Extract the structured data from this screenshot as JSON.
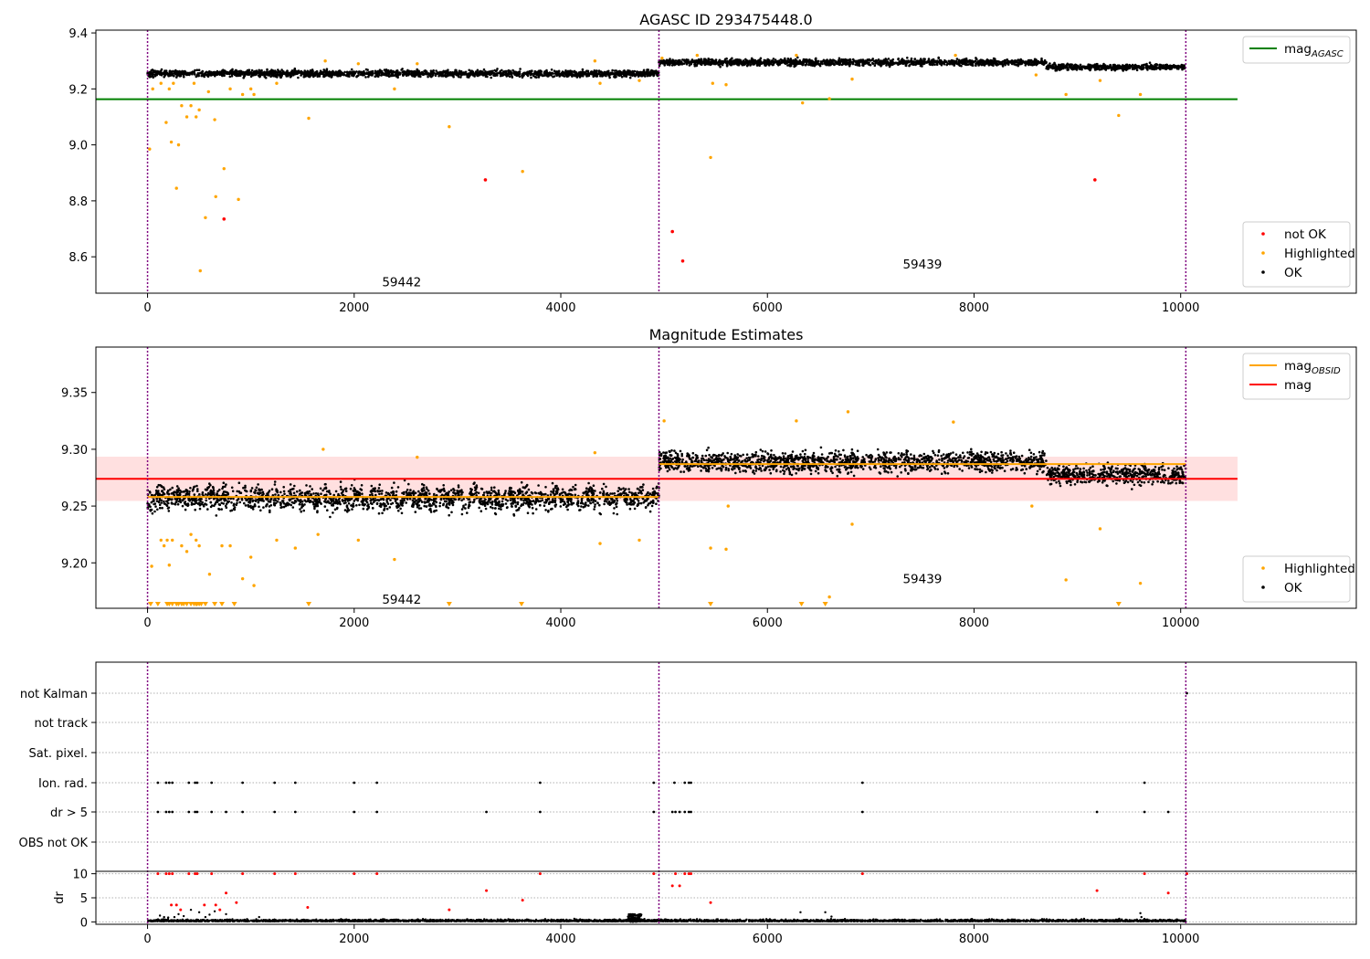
{
  "chart_data": [
    {
      "type": "scatter",
      "title": "AGASC ID 293475448.0",
      "xlim": [
        -500,
        11700
      ],
      "ylim": [
        8.47,
        9.41
      ],
      "xticks": [
        0,
        2000,
        4000,
        6000,
        8000,
        10000
      ],
      "yticks": [
        8.6,
        8.8,
        9.0,
        9.2,
        9.4
      ],
      "ytick_labels": [
        "8.6",
        "8.8",
        "9.0",
        "9.2",
        "9.4"
      ],
      "obs_boundaries": [
        0,
        4950,
        10050
      ],
      "obs_labels": [
        {
          "text": "59442",
          "x": 2460,
          "y": 8.51
        },
        {
          "text": "59439",
          "x": 7500,
          "y": 8.575
        }
      ],
      "lines": [
        {
          "name": "mag",
          "subscript": "AGASC",
          "color": "#008000",
          "x": [
            -500,
            10550
          ],
          "y": [
            9.163,
            9.163
          ]
        }
      ],
      "ok_bands": [
        {
          "x0": 0,
          "x1": 4950,
          "y": 9.255,
          "spread": 0.015
        },
        {
          "x0": 4950,
          "x1": 8700,
          "y": 9.295,
          "spread": 0.015
        },
        {
          "x0": 8700,
          "x1": 10050,
          "y": 9.278,
          "spread": 0.013
        }
      ],
      "highlighted_points": [
        [
          20,
          8.985
        ],
        [
          50,
          9.2
        ],
        [
          130,
          9.22
        ],
        [
          180,
          9.08
        ],
        [
          210,
          9.2
        ],
        [
          230,
          9.01
        ],
        [
          250,
          9.22
        ],
        [
          280,
          8.845
        ],
        [
          300,
          9.0
        ],
        [
          330,
          9.14
        ],
        [
          380,
          9.1
        ],
        [
          420,
          9.14
        ],
        [
          450,
          9.22
        ],
        [
          470,
          9.1
        ],
        [
          500,
          9.125
        ],
        [
          510,
          8.55
        ],
        [
          560,
          8.74
        ],
        [
          590,
          9.19
        ],
        [
          650,
          9.09
        ],
        [
          660,
          8.815
        ],
        [
          740,
          8.915
        ],
        [
          800,
          9.2
        ],
        [
          880,
          8.805
        ],
        [
          920,
          9.18
        ],
        [
          1000,
          9.2
        ],
        [
          1030,
          9.18
        ],
        [
          1250,
          9.22
        ],
        [
          1560,
          9.095
        ],
        [
          1720,
          9.3
        ],
        [
          2040,
          9.29
        ],
        [
          2390,
          9.2
        ],
        [
          2610,
          9.29
        ],
        [
          2920,
          9.065
        ],
        [
          3630,
          8.905
        ],
        [
          4330,
          9.3
        ],
        [
          4380,
          9.22
        ],
        [
          4760,
          9.23
        ],
        [
          4980,
          9.31
        ],
        [
          5320,
          9.32
        ],
        [
          5450,
          8.955
        ],
        [
          5470,
          9.22
        ],
        [
          5600,
          9.215
        ],
        [
          6280,
          9.32
        ],
        [
          6340,
          9.15
        ],
        [
          6600,
          9.165
        ],
        [
          6820,
          9.235
        ],
        [
          7820,
          9.32
        ],
        [
          8600,
          9.25
        ],
        [
          8890,
          9.18
        ],
        [
          9220,
          9.23
        ],
        [
          9400,
          9.105
        ],
        [
          9610,
          9.18
        ]
      ],
      "notok_points": [
        [
          740,
          8.735
        ],
        [
          3270,
          8.875
        ],
        [
          5080,
          8.69
        ],
        [
          5180,
          8.585
        ],
        [
          9170,
          8.875
        ]
      ],
      "legends": [
        {
          "position": "upper-right",
          "entries": [
            {
              "label": "mag",
              "subscript": "AGASC",
              "kind": "line",
              "color": "#008000"
            }
          ]
        },
        {
          "position": "lower-right",
          "entries": [
            {
              "label": "not OK",
              "kind": "dot",
              "color": "#ff0000"
            },
            {
              "label": "Highlighted",
              "kind": "dot",
              "color": "#ffa500"
            },
            {
              "label": "OK",
              "kind": "dot",
              "color": "#000000"
            }
          ]
        }
      ]
    },
    {
      "type": "scatter",
      "title": "Magnitude Estimates",
      "xlim": [
        -500,
        11700
      ],
      "ylim": [
        9.16,
        9.39
      ],
      "xticks": [
        0,
        2000,
        4000,
        6000,
        8000,
        10000
      ],
      "yticks": [
        9.2,
        9.25,
        9.3,
        9.35
      ],
      "ytick_labels": [
        "9.20",
        "9.25",
        "9.30",
        "9.35"
      ],
      "obs_boundaries": [
        0,
        4950,
        10050
      ],
      "obs_labels": [
        {
          "text": "59442",
          "x": 2460,
          "y": 9.168
        },
        {
          "text": "59439",
          "x": 7500,
          "y": 9.186
        }
      ],
      "mag_band": {
        "y0": 9.2545,
        "y1": 9.2935,
        "x0": -500,
        "x1": 10550,
        "color": "#ffcccc"
      },
      "lines": [
        {
          "name": "mag",
          "subscript": "OBSID",
          "color": "#ffa500",
          "segments": [
            [
              0,
              4950,
              9.258
            ],
            [
              4950,
              10050,
              9.287
            ]
          ]
        },
        {
          "name": "mag",
          "color": "#ff0000",
          "segments": [
            [
              -500,
              10550,
              9.274
            ]
          ]
        }
      ],
      "ok_bands": [
        {
          "x0": 0,
          "x1": 4950,
          "y": 9.257,
          "spread": 0.013
        },
        {
          "x0": 4950,
          "x1": 8700,
          "y": 9.289,
          "spread": 0.012
        },
        {
          "x0": 8700,
          "x1": 10050,
          "y": 9.278,
          "spread": 0.011
        }
      ],
      "highlighted_points": [
        [
          40,
          9.197
        ],
        [
          130,
          9.22
        ],
        [
          160,
          9.215
        ],
        [
          190,
          9.22
        ],
        [
          210,
          9.198
        ],
        [
          240,
          9.22
        ],
        [
          330,
          9.215
        ],
        [
          380,
          9.21
        ],
        [
          420,
          9.225
        ],
        [
          470,
          9.22
        ],
        [
          500,
          9.215
        ],
        [
          600,
          9.19
        ],
        [
          720,
          9.215
        ],
        [
          800,
          9.215
        ],
        [
          920,
          9.186
        ],
        [
          1000,
          9.205
        ],
        [
          1030,
          9.18
        ],
        [
          1250,
          9.22
        ],
        [
          1430,
          9.213
        ],
        [
          1650,
          9.225
        ],
        [
          1700,
          9.3
        ],
        [
          2040,
          9.22
        ],
        [
          2390,
          9.203
        ],
        [
          2610,
          9.293
        ],
        [
          4330,
          9.297
        ],
        [
          4380,
          9.217
        ],
        [
          4760,
          9.22
        ],
        [
          5000,
          9.325
        ],
        [
          5450,
          9.213
        ],
        [
          5600,
          9.212
        ],
        [
          5620,
          9.25
        ],
        [
          6280,
          9.325
        ],
        [
          6600,
          9.17
        ],
        [
          6820,
          9.234
        ],
        [
          6780,
          9.333
        ],
        [
          7800,
          9.324
        ],
        [
          8560,
          9.25
        ],
        [
          8890,
          9.185
        ],
        [
          9220,
          9.23
        ],
        [
          9610,
          9.182
        ]
      ],
      "highlighted_below": [
        30,
        100,
        190,
        210,
        240,
        280,
        300,
        330,
        350,
        380,
        420,
        450,
        470,
        480,
        500,
        520,
        560,
        650,
        720,
        840,
        1560,
        2920,
        3620,
        5450,
        6330,
        6560,
        9400
      ],
      "legends": [
        {
          "position": "upper-right",
          "entries": [
            {
              "label": "mag",
              "subscript": "OBSID",
              "kind": "line",
              "color": "#ffa500"
            },
            {
              "label": "mag",
              "kind": "line",
              "color": "#ff0000"
            }
          ]
        },
        {
          "position": "lower-right",
          "entries": [
            {
              "label": "Highlighted",
              "kind": "dot",
              "color": "#ffa500"
            },
            {
              "label": "OK",
              "kind": "dot",
              "color": "#000000"
            }
          ]
        }
      ]
    },
    {
      "type": "scatter",
      "title": "",
      "xlim": [
        -500,
        11700
      ],
      "xticks": [
        0,
        2000,
        4000,
        6000,
        8000,
        10000
      ],
      "obs_boundaries": [
        0,
        4950,
        10050
      ],
      "flag_rows": [
        "not Kalman",
        "not track",
        "Sat. pixel.",
        "Ion. rad.",
        "dr > 5",
        "OBS not OK"
      ],
      "flag_points": {
        "not Kalman": [
          10060
        ],
        "not track": [],
        "Sat. pixel.": [],
        "Ion. rad.": [
          100,
          180,
          210,
          240,
          400,
          460,
          480,
          620,
          920,
          1230,
          1430,
          2000,
          2220,
          3800,
          4900,
          5100,
          5200,
          5240,
          5260,
          6920,
          9650
        ],
        "dr > 5": [
          100,
          180,
          210,
          240,
          400,
          460,
          480,
          620,
          760,
          920,
          1230,
          1430,
          2000,
          2220,
          3280,
          3800,
          4900,
          5080,
          5110,
          5150,
          5200,
          5240,
          5260,
          6920,
          9190,
          9650,
          9880
        ],
        "OBS not OK": []
      },
      "dr": {
        "ylabel": "dr",
        "ylim": [
          -0.5,
          10.5
        ],
        "yticks": [
          0,
          5,
          10
        ],
        "ytick_labels": [
          "0",
          "5",
          "10"
        ],
        "high_points": [
          [
            100,
            10
          ],
          [
            180,
            10
          ],
          [
            210,
            10
          ],
          [
            240,
            10
          ],
          [
            400,
            10
          ],
          [
            460,
            10
          ],
          [
            480,
            10
          ],
          [
            620,
            10
          ],
          [
            920,
            10
          ],
          [
            1230,
            10
          ],
          [
            1430,
            10
          ],
          [
            2000,
            10
          ],
          [
            2220,
            10
          ],
          [
            3800,
            10
          ],
          [
            4900,
            10
          ],
          [
            5080,
            7.5
          ],
          [
            5110,
            10
          ],
          [
            5150,
            7.5
          ],
          [
            5200,
            10
          ],
          [
            5240,
            10
          ],
          [
            5260,
            10
          ],
          [
            6920,
            10
          ],
          [
            9650,
            10
          ],
          [
            10060,
            10
          ],
          [
            3280,
            6.5
          ],
          [
            3630,
            4.5
          ],
          [
            9190,
            6.5
          ],
          [
            9880,
            6.0
          ],
          [
            760,
            6.0
          ],
          [
            230,
            3.5
          ],
          [
            280,
            3.5
          ],
          [
            320,
            2.5
          ],
          [
            550,
            3.5
          ],
          [
            660,
            3.5
          ],
          [
            700,
            2.5
          ],
          [
            860,
            4.0
          ],
          [
            1550,
            3.0
          ],
          [
            5450,
            4.0
          ],
          [
            2920,
            2.5
          ]
        ],
        "low_points": [
          [
            120,
            1.3
          ],
          [
            160,
            1.0
          ],
          [
            200,
            0.9
          ],
          [
            260,
            1.0
          ],
          [
            300,
            1.6
          ],
          [
            350,
            1.2
          ],
          [
            420,
            2.5
          ],
          [
            500,
            2.0
          ],
          [
            560,
            1.0
          ],
          [
            600,
            1.5
          ],
          [
            650,
            2.2
          ],
          [
            760,
            1.6
          ],
          [
            1080,
            1.0
          ],
          [
            6320,
            2.0
          ],
          [
            6560,
            2.0
          ],
          [
            6620,
            1.1
          ],
          [
            9610,
            1.8
          ],
          [
            9620,
            1.0
          ]
        ],
        "bump": {
          "x0": 4650,
          "x1": 4780,
          "ymax": 1.6
        }
      }
    }
  ]
}
